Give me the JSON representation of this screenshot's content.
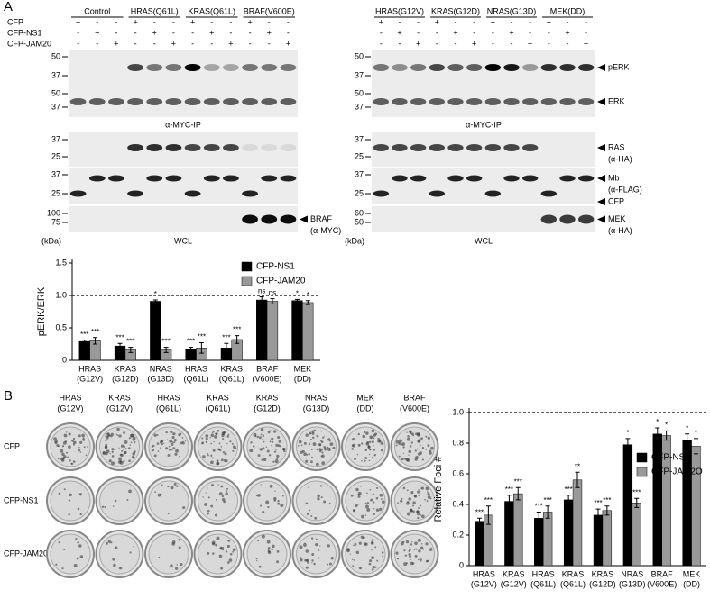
{
  "panel_a": {
    "label": "A",
    "rows": [
      "CFP",
      "CFP-NS1",
      "CFP-JAM20"
    ],
    "signs": [
      [
        "+",
        "-",
        "-"
      ],
      [
        "-",
        "+",
        "-"
      ],
      [
        "-",
        "-",
        "+"
      ]
    ],
    "left": {
      "groups": [
        "Control",
        "HRAS(Q61L)",
        "KRAS(Q61L)",
        "BRAF(V600E)"
      ],
      "ip_caption": "α-MYC-IP",
      "wcl_caption": "WCL",
      "kda": "(kDa)",
      "blots": [
        {
          "markers": [
            "50",
            "37"
          ],
          "tags": []
        },
        {
          "markers": [
            "50",
            "37"
          ],
          "tags": []
        },
        {
          "markers": [
            "37",
            "25"
          ],
          "tags": []
        },
        {
          "markers": [
            "37",
            "25"
          ],
          "tags": []
        },
        {
          "markers": [
            "100",
            "75"
          ],
          "tags": [
            [
              "BRAF",
              "(α-MYC)"
            ]
          ]
        }
      ]
    },
    "right": {
      "groups": [
        "HRAS(G12V)",
        "KRAS(G12D)",
        "NRAS(G13D)",
        "MEK(DD)"
      ],
      "ip_caption": "α-MYC-IP",
      "wcl_caption": "WCL",
      "kda": "(kDa)",
      "blots": [
        {
          "markers": [
            "50",
            "37"
          ],
          "tags": [
            [
              "pERK"
            ]
          ]
        },
        {
          "markers": [
            "50",
            "37"
          ],
          "tags": [
            [
              "ERK"
            ]
          ]
        },
        {
          "markers": [
            "37",
            "25"
          ],
          "tags": [
            [
              "RAS",
              "(α-HA)"
            ]
          ]
        },
        {
          "markers": [
            "37",
            "25"
          ],
          "tags": [
            [
              "Mb",
              "(α-FLAG)"
            ],
            [
              "CFP"
            ]
          ]
        },
        {
          "markers": [
            "60",
            "50"
          ],
          "tags": [
            [
              "MEK",
              "(α-HA)"
            ]
          ]
        }
      ]
    }
  },
  "panel_b": {
    "label": "B",
    "plate_columns": [
      [
        "HRAS",
        "(G12V)"
      ],
      [
        "KRAS",
        "(G12V)"
      ],
      [
        "HRAS",
        "(Q61L)"
      ],
      [
        "KRAS",
        "(Q61L)"
      ],
      [
        "KRAS",
        "(G12D)"
      ],
      [
        "NRAS",
        "(G13D)"
      ],
      [
        "MEK",
        "(DD)"
      ],
      [
        "BRAF",
        "(V600E)"
      ]
    ],
    "plate_rows": [
      "CFP",
      "CFP-NS1",
      "CFP-JAM20"
    ]
  },
  "chart_data": [
    {
      "type": "bar",
      "y_label": "pERK/ERK",
      "categories": [
        [
          "HRAS",
          "(G12V)"
        ],
        [
          "KRAS",
          "(G12D)"
        ],
        [
          "NRAS",
          "(G13D)"
        ],
        [
          "HRAS",
          "(Q61L)"
        ],
        [
          "KRAS",
          "(Q61L)"
        ],
        [
          "BRAF",
          "(V600E)"
        ],
        [
          "MEK",
          "(DD)"
        ]
      ],
      "series": [
        {
          "name": "CFP-NS1",
          "color": "#000000",
          "values": [
            0.29,
            0.22,
            0.91,
            0.17,
            0.19,
            0.93,
            0.92
          ],
          "errors": [
            0.02,
            0.04,
            0.02,
            0.03,
            0.07,
            0.05,
            0.02
          ],
          "significance": [
            "***",
            "***",
            "*",
            "***",
            "***",
            "ns",
            "*"
          ]
        },
        {
          "name": "CFP-JAM20",
          "color": "#999999",
          "values": [
            0.3,
            0.16,
            0.16,
            0.19,
            0.32,
            0.91,
            0.89
          ],
          "errors": [
            0.05,
            0.04,
            0.04,
            0.08,
            0.06,
            0.04,
            0.03
          ],
          "significance": [
            "***",
            "***",
            "***",
            "***",
            "***",
            "ns",
            "*"
          ]
        }
      ],
      "ylim": [
        0,
        1.5
      ],
      "yticks": [
        0,
        0.5,
        {
          "value": 1,
          "label": "1.0"
        },
        1.5
      ],
      "reference_line": 1
    },
    {
      "type": "bar",
      "y_label": "Relative Foci #",
      "categories": [
        [
          "HRAS",
          "(G12V)"
        ],
        [
          "KRAS",
          "(G12V)"
        ],
        [
          "HRAS",
          "(Q61L)"
        ],
        [
          "KRAS",
          "(Q61L)"
        ],
        [
          "KRAS",
          "(G12D)"
        ],
        [
          "NRAS",
          "(G13D)"
        ],
        [
          "BRAF",
          "(V600E)"
        ],
        [
          "MEK",
          "(DD)"
        ]
      ],
      "series": [
        {
          "name": "CFP-NS1",
          "color": "#000000",
          "values": [
            0.29,
            0.42,
            0.31,
            0.43,
            0.33,
            0.79,
            0.86,
            0.82
          ],
          "errors": [
            0.02,
            0.04,
            0.04,
            0.03,
            0.04,
            0.04,
            0.04,
            0.04
          ],
          "significance": [
            "***",
            "***",
            "***",
            "***",
            "***",
            "*",
            "*",
            "*"
          ]
        },
        {
          "name": "CFP-JAM2O",
          "color": "#999999",
          "values": [
            0.33,
            0.47,
            0.35,
            0.56,
            0.36,
            0.41,
            0.85,
            0.78
          ],
          "errors": [
            0.06,
            0.04,
            0.04,
            0.05,
            0.03,
            0.03,
            0.03,
            0.05
          ],
          "significance": [
            "***",
            "***",
            "***",
            "**",
            "***",
            "***",
            "*",
            "*"
          ]
        }
      ],
      "ylim": [
        0,
        1
      ],
      "yticks": [
        0,
        0.2,
        0.4,
        0.6,
        0.8,
        {
          "value": 1,
          "label": "1.0"
        }
      ],
      "reference_line": 1
    }
  ]
}
